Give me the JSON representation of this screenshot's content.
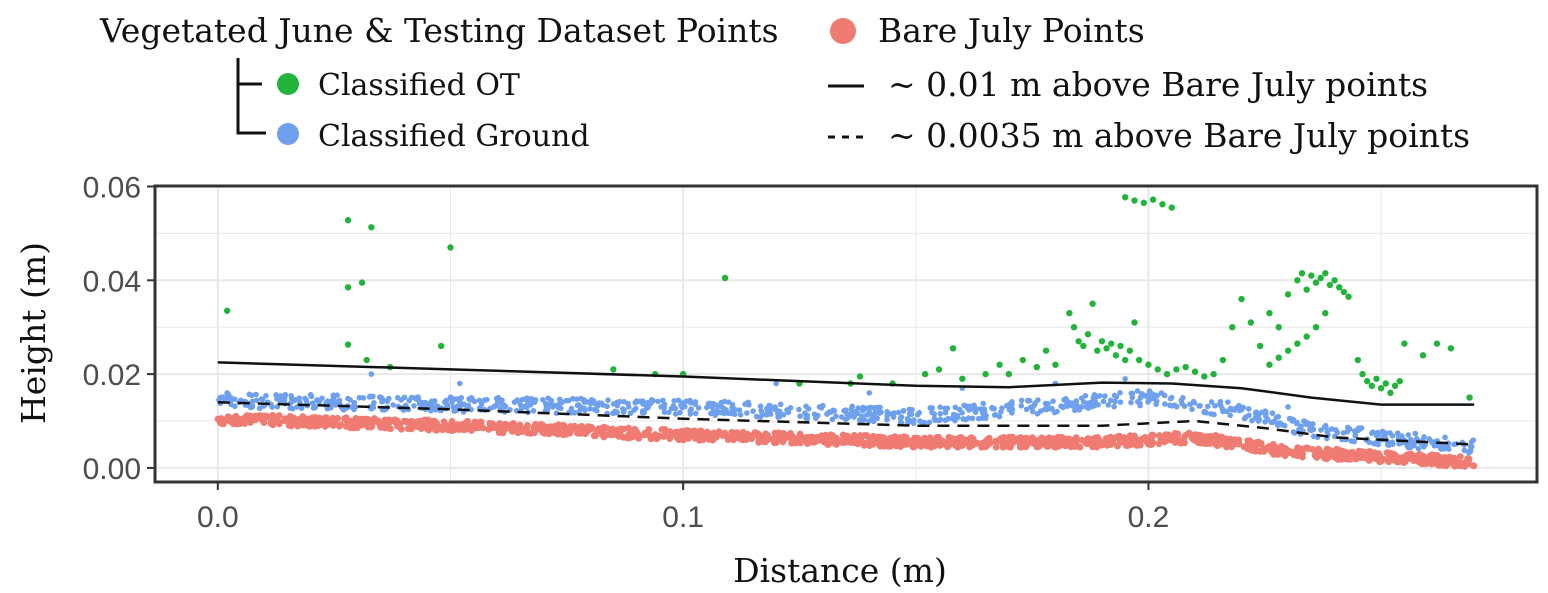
{
  "chart_data": {
    "type": "scatter",
    "title": "",
    "xlabel": "Distance (m)",
    "ylabel": "Height (m)",
    "xlim": [
      -0.0135,
      0.2835
    ],
    "ylim": [
      -0.003,
      0.0601
    ],
    "x_ticks": [
      {
        "value": 0.0,
        "label": "0.0"
      },
      {
        "value": 0.1,
        "label": "0.1"
      },
      {
        "value": 0.2,
        "label": "0.2"
      }
    ],
    "y_ticks": [
      {
        "value": 0.0,
        "label": "0.00"
      },
      {
        "value": 0.02,
        "label": "0.02"
      },
      {
        "value": 0.04,
        "label": "0.04"
      },
      {
        "value": 0.06,
        "label": "0.06"
      }
    ],
    "grid": true,
    "legend": {
      "placement": "top",
      "group_title": "Vegetated June & Testing Dataset Points",
      "entries": {
        "classified_ot": "Classified OT",
        "classified_ground": "Classified Ground",
        "bare_july": "Bare July Points",
        "solid_line": "~ 0.01 m above Bare July points",
        "dashed_line": "~ 0.0035 m above Bare July points"
      }
    },
    "colors": {
      "classified_ot": "#22b33a",
      "classified_ground": "#6fa0ee",
      "bare_july": "#f07b72",
      "line": "#111111",
      "grid": "#e8e8e8",
      "frame": "#333333"
    },
    "series": [
      {
        "name": "Bare July Points",
        "trend": [
          [
            0.0,
            0.0105
          ],
          [
            0.05,
            0.009
          ],
          [
            0.1,
            0.007
          ],
          [
            0.15,
            0.0055
          ],
          [
            0.19,
            0.0055
          ],
          [
            0.21,
            0.0065
          ],
          [
            0.23,
            0.0035
          ],
          [
            0.27,
            0.0012
          ]
        ]
      },
      {
        "name": "Classified Ground",
        "trend": [
          [
            0.0,
            0.0145
          ],
          [
            0.05,
            0.0135
          ],
          [
            0.1,
            0.013
          ],
          [
            0.15,
            0.011
          ],
          [
            0.2,
            0.015
          ],
          [
            0.22,
            0.012
          ],
          [
            0.235,
            0.008
          ],
          [
            0.27,
            0.0045
          ]
        ],
        "points": [
          [
            0.002,
            0.016
          ],
          [
            0.033,
            0.02
          ],
          [
            0.052,
            0.018
          ],
          [
            0.12,
            0.018
          ],
          [
            0.14,
            0.016
          ],
          [
            0.16,
            0.017
          ],
          [
            0.18,
            0.018
          ],
          [
            0.195,
            0.019
          ],
          [
            0.205,
            0.015
          ],
          [
            0.212,
            0.012
          ],
          [
            0.225,
            0.012
          ],
          [
            0.23,
            0.013
          ],
          [
            0.235,
            0.008
          ],
          [
            0.25,
            0.006
          ]
        ]
      },
      {
        "name": "Classified OT",
        "points": [
          [
            0.002,
            0.0335
          ],
          [
            0.028,
            0.0528
          ],
          [
            0.033,
            0.0513
          ],
          [
            0.028,
            0.0385
          ],
          [
            0.031,
            0.0395
          ],
          [
            0.028,
            0.0263
          ],
          [
            0.032,
            0.023
          ],
          [
            0.037,
            0.0215
          ],
          [
            0.048,
            0.026
          ],
          [
            0.05,
            0.047
          ],
          [
            0.109,
            0.0405
          ],
          [
            0.085,
            0.021
          ],
          [
            0.094,
            0.02
          ],
          [
            0.1,
            0.02
          ],
          [
            0.125,
            0.018
          ],
          [
            0.136,
            0.018
          ],
          [
            0.138,
            0.0195
          ],
          [
            0.145,
            0.018
          ],
          [
            0.152,
            0.02
          ],
          [
            0.155,
            0.021
          ],
          [
            0.158,
            0.0255
          ],
          [
            0.16,
            0.019
          ],
          [
            0.165,
            0.02
          ],
          [
            0.168,
            0.022
          ],
          [
            0.17,
            0.02
          ],
          [
            0.173,
            0.023
          ],
          [
            0.176,
            0.0215
          ],
          [
            0.178,
            0.025
          ],
          [
            0.18,
            0.022
          ],
          [
            0.183,
            0.033
          ],
          [
            0.184,
            0.03
          ],
          [
            0.185,
            0.027
          ],
          [
            0.186,
            0.026
          ],
          [
            0.187,
            0.0285
          ],
          [
            0.188,
            0.035
          ],
          [
            0.189,
            0.025
          ],
          [
            0.19,
            0.027
          ],
          [
            0.191,
            0.0255
          ],
          [
            0.192,
            0.0265
          ],
          [
            0.193,
            0.024
          ],
          [
            0.194,
            0.026
          ],
          [
            0.195,
            0.023
          ],
          [
            0.196,
            0.025
          ],
          [
            0.197,
            0.031
          ],
          [
            0.198,
            0.023
          ],
          [
            0.195,
            0.0577
          ],
          [
            0.197,
            0.057
          ],
          [
            0.199,
            0.0565
          ],
          [
            0.201,
            0.0572
          ],
          [
            0.203,
            0.0562
          ],
          [
            0.205,
            0.0555
          ],
          [
            0.2,
            0.022
          ],
          [
            0.202,
            0.021
          ],
          [
            0.204,
            0.02
          ],
          [
            0.206,
            0.021
          ],
          [
            0.208,
            0.0215
          ],
          [
            0.21,
            0.0205
          ],
          [
            0.212,
            0.0195
          ],
          [
            0.214,
            0.02
          ],
          [
            0.216,
            0.023
          ],
          [
            0.218,
            0.03
          ],
          [
            0.22,
            0.036
          ],
          [
            0.222,
            0.031
          ],
          [
            0.224,
            0.026
          ],
          [
            0.226,
            0.033
          ],
          [
            0.228,
            0.03
          ],
          [
            0.23,
            0.037
          ],
          [
            0.232,
            0.04
          ],
          [
            0.233,
            0.0415
          ],
          [
            0.234,
            0.038
          ],
          [
            0.235,
            0.041
          ],
          [
            0.236,
            0.0395
          ],
          [
            0.237,
            0.0405
          ],
          [
            0.238,
            0.0415
          ],
          [
            0.239,
            0.039
          ],
          [
            0.24,
            0.04
          ],
          [
            0.241,
            0.0385
          ],
          [
            0.242,
            0.0375
          ],
          [
            0.243,
            0.0365
          ],
          [
            0.238,
            0.033
          ],
          [
            0.236,
            0.03
          ],
          [
            0.234,
            0.028
          ],
          [
            0.232,
            0.0265
          ],
          [
            0.23,
            0.025
          ],
          [
            0.228,
            0.0235
          ],
          [
            0.226,
            0.022
          ],
          [
            0.245,
            0.023
          ],
          [
            0.246,
            0.02
          ],
          [
            0.247,
            0.0185
          ],
          [
            0.248,
            0.0175
          ],
          [
            0.249,
            0.019
          ],
          [
            0.25,
            0.017
          ],
          [
            0.251,
            0.018
          ],
          [
            0.252,
            0.016
          ],
          [
            0.253,
            0.0175
          ],
          [
            0.254,
            0.0185
          ],
          [
            0.255,
            0.0265
          ],
          [
            0.259,
            0.024
          ],
          [
            0.262,
            0.0265
          ],
          [
            0.265,
            0.0255
          ],
          [
            0.269,
            0.015
          ]
        ]
      },
      {
        "name": "~ 0.01 m above Bare July points",
        "style": "solid",
        "points": [
          [
            0.0,
            0.0225
          ],
          [
            0.05,
            0.021
          ],
          [
            0.1,
            0.0195
          ],
          [
            0.15,
            0.0175
          ],
          [
            0.17,
            0.0172
          ],
          [
            0.19,
            0.0182
          ],
          [
            0.205,
            0.018
          ],
          [
            0.22,
            0.017
          ],
          [
            0.235,
            0.015
          ],
          [
            0.25,
            0.0135
          ],
          [
            0.27,
            0.0135
          ]
        ]
      },
      {
        "name": "~ 0.0035 m above Bare July points",
        "style": "dashed",
        "points": [
          [
            0.0,
            0.014
          ],
          [
            0.05,
            0.0125
          ],
          [
            0.1,
            0.0105
          ],
          [
            0.15,
            0.009
          ],
          [
            0.19,
            0.009
          ],
          [
            0.21,
            0.01
          ],
          [
            0.225,
            0.0085
          ],
          [
            0.24,
            0.0065
          ],
          [
            0.27,
            0.005
          ]
        ]
      }
    ]
  }
}
